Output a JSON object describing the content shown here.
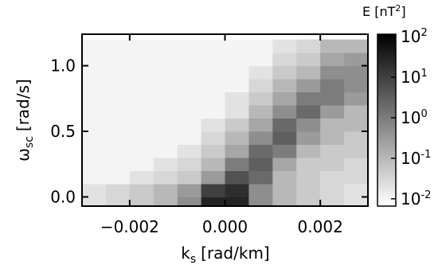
{
  "chart_data": {
    "type": "heatmap",
    "xlabel": {
      "symbol": "k",
      "subscript": "s",
      "unit": "[rad/km]"
    },
    "ylabel": {
      "symbol": "ω",
      "subscript": "sc",
      "unit": "[rad/s]"
    },
    "colorbar_title": {
      "text": "E [nT",
      "superscript": "2",
      "close": "]"
    },
    "xlim": [
      -0.003,
      0.003
    ],
    "ylim": [
      -0.07,
      1.24
    ],
    "xticks": [
      {
        "value": -0.002,
        "label": "−0.002"
      },
      {
        "value": 0,
        "label": "0.000"
      },
      {
        "value": 0.002,
        "label": "0.002"
      }
    ],
    "yticks": [
      {
        "value": 0,
        "label": "0.0"
      },
      {
        "value": 0.5,
        "label": "0.5"
      },
      {
        "value": 1.0,
        "label": "1.0"
      }
    ],
    "x_edges": [
      -0.003,
      -0.0025,
      -0.002,
      -0.0015,
      -0.001,
      -0.0005,
      0,
      0.0005,
      0.001,
      0.0015,
      0.002,
      0.0025,
      0.003
    ],
    "y_edges": [
      -0.1,
      0,
      0.1,
      0.2,
      0.3,
      0.4,
      0.5,
      0.6,
      0.7,
      0.8,
      0.9,
      1.0,
      1.1,
      1.2
    ],
    "z": [
      [
        0.02,
        0.03,
        0.05,
        0.1,
        0.5,
        30,
        30,
        0.5,
        0.1,
        0.05,
        0.03,
        0.02
      ],
      [
        0.02,
        0.03,
        0.05,
        0.1,
        0.3,
        10,
        20,
        0.5,
        0.1,
        0.05,
        0.03,
        0.02
      ],
      [
        0.01,
        0.01,
        0.02,
        0.03,
        0.05,
        0.3,
        5,
        2,
        0.1,
        0.05,
        0.03,
        0.03
      ],
      [
        0.01,
        0.01,
        0.01,
        0.02,
        0.03,
        0.1,
        1,
        3,
        0.2,
        0.05,
        0.05,
        0.03
      ],
      [
        0.01,
        0.01,
        0.01,
        0.01,
        0.02,
        0.05,
        0.2,
        2,
        1,
        0.1,
        0.05,
        0.05
      ],
      [
        0.01,
        0.01,
        0.01,
        0.01,
        0.01,
        0.03,
        0.1,
        0.5,
        3,
        0.3,
        0.1,
        0.05
      ],
      [
        0.01,
        0.01,
        0.01,
        0.01,
        0.01,
        0.02,
        0.05,
        0.2,
        2,
        0.5,
        0.1,
        0.1
      ],
      [
        0.01,
        0.01,
        0.01,
        0.01,
        0.01,
        0.01,
        0.02,
        0.1,
        0.5,
        2,
        0.3,
        0.1
      ],
      [
        0.01,
        0.01,
        0.01,
        0.01,
        0.01,
        0.01,
        0.02,
        0.05,
        0.2,
        1,
        1,
        0.3
      ],
      [
        0.01,
        0.01,
        0.01,
        0.01,
        0.01,
        0.01,
        0.01,
        0.03,
        0.1,
        0.3,
        1,
        0.5
      ],
      [
        0.01,
        0.01,
        0.01,
        0.01,
        0.01,
        0.01,
        0.01,
        0.02,
        0.05,
        0.1,
        0.5,
        0.5
      ],
      [
        0.01,
        0.01,
        0.01,
        0.01,
        0.01,
        0.01,
        0.01,
        0.01,
        0.03,
        0.05,
        0.2,
        0.3
      ],
      [
        0.01,
        0.01,
        0.01,
        0.01,
        0.01,
        0.01,
        0.01,
        0.01,
        0.02,
        0.03,
        0.1,
        0.1
      ]
    ],
    "colorscale": "log",
    "clim": [
      0.0066,
      115
    ],
    "cticks": [
      {
        "value": 0.01,
        "label": "10",
        "exponent": "-2"
      },
      {
        "value": 0.1,
        "label": "10",
        "exponent": "-1"
      },
      {
        "value": 1,
        "label": "10",
        "exponent": "0"
      },
      {
        "value": 10,
        "label": "10",
        "exponent": "1"
      },
      {
        "value": 100,
        "label": "10",
        "exponent": "2"
      }
    ]
  }
}
